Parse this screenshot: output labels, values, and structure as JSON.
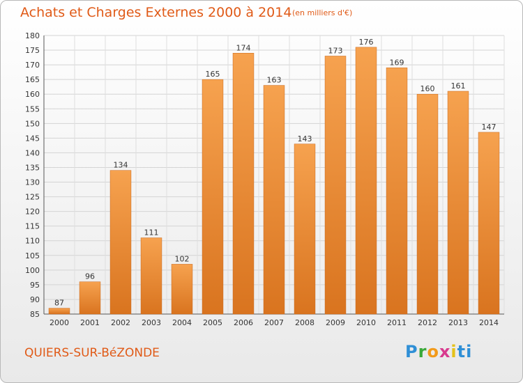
{
  "header": {
    "title": "Achats et Charges Externes 2000 à 2014",
    "unit": "(en milliers d'€)"
  },
  "footer": {
    "town": "QUIERS-SUR-BéZONDE",
    "logo_parts": [
      "P",
      "r",
      "o",
      "x",
      "i",
      "ti"
    ]
  },
  "colors": {
    "accent": "#e05a17",
    "bar_light": "#f6a24f",
    "bar_dark": "#d9741f"
  },
  "chart_data": {
    "type": "bar",
    "title": "Achats et Charges Externes 2000 à 2014",
    "subtitle": "(en milliers d'€)",
    "xlabel": "",
    "ylabel": "",
    "categories": [
      "2000",
      "2001",
      "2002",
      "2003",
      "2004",
      "2005",
      "2006",
      "2007",
      "2008",
      "2009",
      "2010",
      "2011",
      "2012",
      "2013",
      "2014"
    ],
    "values": [
      87,
      96,
      134,
      111,
      102,
      165,
      174,
      163,
      143,
      173,
      176,
      169,
      160,
      161,
      147
    ],
    "data_labels": [
      "87",
      "96",
      "134",
      "111",
      "102",
      "165",
      "174",
      "163",
      "143",
      "173",
      "176",
      "169",
      "160",
      "161",
      "147"
    ],
    "ylim": [
      85,
      180
    ],
    "yticks": [
      85,
      90,
      95,
      100,
      105,
      110,
      115,
      120,
      125,
      130,
      135,
      140,
      145,
      150,
      155,
      160,
      165,
      170,
      175,
      180
    ],
    "ytick_labels": [
      "85",
      "90",
      "95",
      "100",
      "105",
      "110",
      "115",
      "120",
      "125",
      "130",
      "135",
      "140",
      "145",
      "150",
      "155",
      "160",
      "165",
      "170",
      "175",
      "180"
    ],
    "grid": true,
    "legend": "none"
  }
}
